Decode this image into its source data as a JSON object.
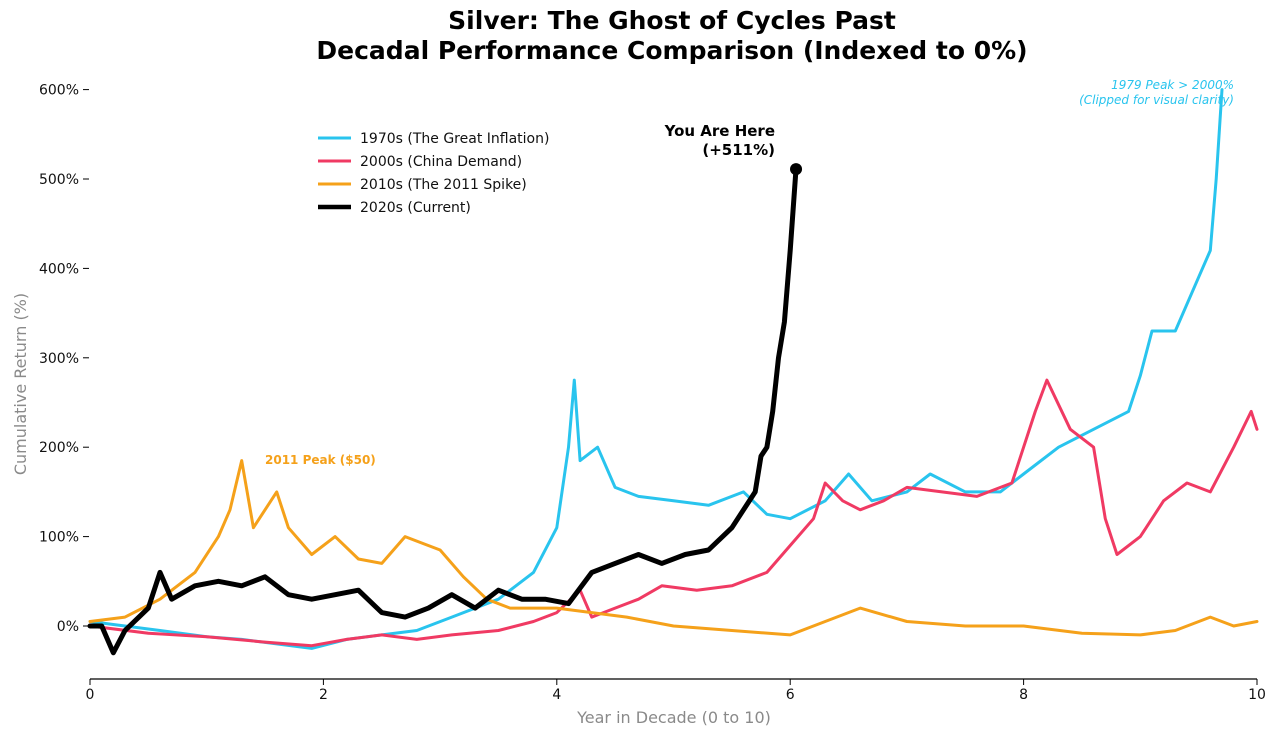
{
  "chart_data": {
    "type": "line",
    "title": "Silver: The Ghost of Cycles Past",
    "subtitle": "Decadal Performance Comparison (Indexed to 0%)",
    "xlabel": "Year in Decade (0 to 10)",
    "ylabel": "Cumulative Return (%)",
    "xlim": [
      0,
      10
    ],
    "ylim": [
      -60,
      600
    ],
    "x_ticks": [
      0,
      2,
      4,
      6,
      8,
      10
    ],
    "x_tick_labels": [
      "0",
      "2",
      "4",
      "6",
      "8",
      "10"
    ],
    "y_ticks": [
      0,
      100,
      200,
      300,
      400,
      500,
      600
    ],
    "y_tick_labels": [
      "0%",
      "100%",
      "200%",
      "300%",
      "400%",
      "500%",
      "600%"
    ],
    "legend_position": "upper-left",
    "series": [
      {
        "name": "1970s (The Great Inflation)",
        "color": "#29c4ee",
        "x": [
          0,
          0.3,
          0.6,
          1.0,
          1.3,
          1.6,
          1.9,
          2.2,
          2.5,
          2.8,
          3.1,
          3.5,
          3.8,
          4.0,
          4.1,
          4.15,
          4.2,
          4.35,
          4.5,
          4.7,
          5.0,
          5.3,
          5.6,
          5.8,
          6.0,
          6.3,
          6.5,
          6.7,
          7.0,
          7.2,
          7.5,
          7.8,
          8.0,
          8.3,
          8.6,
          8.9,
          9.0,
          9.1,
          9.3,
          9.5,
          9.6,
          9.65,
          9.7
        ],
        "y": [
          5,
          0,
          -5,
          -12,
          -15,
          -20,
          -25,
          -15,
          -10,
          -5,
          10,
          30,
          60,
          110,
          200,
          275,
          185,
          200,
          155,
          145,
          140,
          135,
          150,
          125,
          120,
          140,
          170,
          140,
          150,
          170,
          150,
          150,
          170,
          200,
          220,
          240,
          280,
          330,
          330,
          390,
          420,
          500,
          600
        ]
      },
      {
        "name": "2000s (China Demand)",
        "color": "#f03a63",
        "x": [
          0,
          0.5,
          1.0,
          1.5,
          1.9,
          2.2,
          2.5,
          2.8,
          3.1,
          3.5,
          3.8,
          4.0,
          4.2,
          4.3,
          4.5,
          4.7,
          4.9,
          5.2,
          5.5,
          5.8,
          6.0,
          6.2,
          6.3,
          6.45,
          6.6,
          6.8,
          7.0,
          7.3,
          7.6,
          7.9,
          8.0,
          8.1,
          8.2,
          8.4,
          8.6,
          8.7,
          8.8,
          9.0,
          9.2,
          9.4,
          9.6,
          9.8,
          9.95,
          10.0
        ],
        "y": [
          0,
          -8,
          -12,
          -18,
          -22,
          -15,
          -10,
          -15,
          -10,
          -5,
          5,
          15,
          40,
          10,
          20,
          30,
          45,
          40,
          45,
          60,
          90,
          120,
          160,
          140,
          130,
          140,
          155,
          150,
          145,
          160,
          200,
          240,
          275,
          220,
          200,
          120,
          80,
          100,
          140,
          160,
          150,
          200,
          240,
          220
        ]
      },
      {
        "name": "2010s (The 2011 Spike)",
        "color": "#f5a11a",
        "x": [
          0,
          0.3,
          0.6,
          0.9,
          1.1,
          1.2,
          1.3,
          1.4,
          1.6,
          1.7,
          1.9,
          2.1,
          2.3,
          2.5,
          2.7,
          2.8,
          3.0,
          3.2,
          3.4,
          3.6,
          4.0,
          4.3,
          4.6,
          5.0,
          5.5,
          6.0,
          6.3,
          6.6,
          7.0,
          7.5,
          8.0,
          8.5,
          9.0,
          9.3,
          9.6,
          9.8,
          10.0
        ],
        "y": [
          5,
          10,
          30,
          60,
          100,
          130,
          185,
          110,
          150,
          110,
          80,
          100,
          75,
          70,
          100,
          95,
          85,
          55,
          30,
          20,
          20,
          15,
          10,
          0,
          -5,
          -10,
          5,
          20,
          5,
          0,
          0,
          -8,
          -10,
          -5,
          10,
          0,
          5
        ]
      },
      {
        "name": "2020s (Current)",
        "color": "#000000",
        "x": [
          0,
          0.1,
          0.2,
          0.3,
          0.5,
          0.6,
          0.7,
          0.9,
          1.1,
          1.3,
          1.5,
          1.7,
          1.9,
          2.1,
          2.3,
          2.5,
          2.7,
          2.9,
          3.1,
          3.3,
          3.5,
          3.7,
          3.9,
          4.1,
          4.3,
          4.5,
          4.7,
          4.9,
          5.1,
          5.3,
          5.5,
          5.6,
          5.7,
          5.75,
          5.8,
          5.85,
          5.9,
          5.95,
          6.0,
          6.05
        ],
        "y": [
          0,
          0,
          -30,
          -5,
          20,
          60,
          30,
          45,
          50,
          45,
          55,
          35,
          30,
          35,
          40,
          15,
          10,
          20,
          35,
          20,
          40,
          30,
          30,
          25,
          60,
          70,
          80,
          70,
          80,
          85,
          110,
          130,
          150,
          190,
          200,
          240,
          300,
          340,
          420,
          511
        ]
      }
    ],
    "annotations": {
      "you_are_here": "You Are Here",
      "you_are_here_value": "(+511%)",
      "current_end_value": 511,
      "peak_2011": "2011 Peak ($50)",
      "peak_1979_line1": "1979 Peak > 2000%",
      "peak_1979_line2": "(Clipped for visual clarity)"
    }
  }
}
